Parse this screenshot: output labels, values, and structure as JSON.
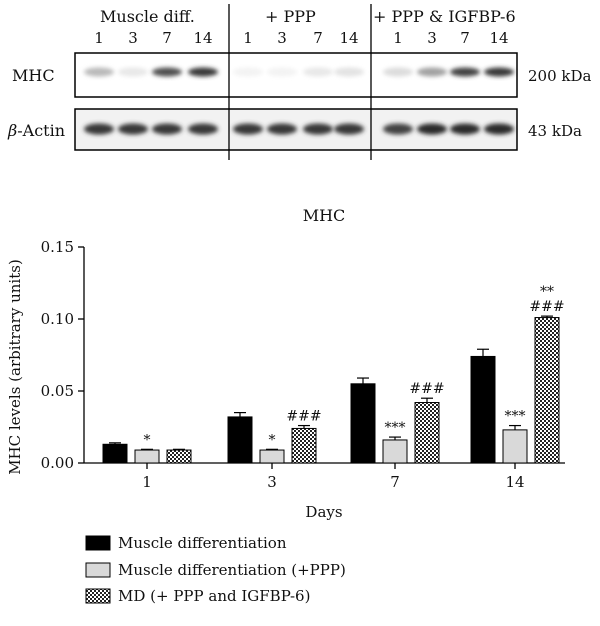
{
  "blot": {
    "group_labels": [
      "Muscle diff.",
      "+ PPP",
      "+ PPP & IGFBP-6"
    ],
    "lane_days": [
      "1",
      "3",
      "7",
      "14",
      "1",
      "3",
      "7",
      "14",
      "1",
      "3",
      "7",
      "14"
    ],
    "rows": [
      {
        "label": "MHC",
        "size": "200 kDa",
        "intensity": [
          0.3,
          0.1,
          0.75,
          0.85,
          0.05,
          0.05,
          0.1,
          0.12,
          0.15,
          0.4,
          0.8,
          0.85
        ]
      },
      {
        "label_prefix": "β",
        "label": "-Actin",
        "size": "43 kDa",
        "intensity": [
          0.85,
          0.85,
          0.85,
          0.85,
          0.85,
          0.85,
          0.85,
          0.85,
          0.8,
          0.9,
          0.9,
          0.9
        ]
      }
    ]
  },
  "chart_data": {
    "type": "bar",
    "title": "MHC",
    "xlabel": "Days",
    "ylabel": "MHC levels (arbitrary units)",
    "categories": [
      "1",
      "3",
      "7",
      "14"
    ],
    "ylim": [
      0,
      0.15
    ],
    "yticks": [
      "0.00",
      "0.05",
      "0.10",
      "0.15"
    ],
    "grid": false,
    "legend_position": "bottom-left",
    "series": [
      {
        "name": "Muscle differentiation",
        "values": [
          0.013,
          0.032,
          0.055,
          0.074
        ],
        "errors": [
          0.001,
          0.003,
          0.004,
          0.005
        ],
        "annotations": [
          "",
          "",
          "",
          ""
        ],
        "fill": "#000000",
        "pattern": "solid"
      },
      {
        "name": "Muscle differentiation (+PPP)",
        "values": [
          0.009,
          0.009,
          0.016,
          0.023
        ],
        "errors": [
          0.0005,
          0.0005,
          0.002,
          0.003
        ],
        "annotations": [
          "*",
          "*",
          "***",
          "***"
        ],
        "fill": "#d9d9d9",
        "pattern": "solid"
      },
      {
        "name": "MD (+ PPP and IGFBP-6)",
        "values": [
          0.009,
          0.024,
          0.042,
          0.101
        ],
        "errors": [
          0.0005,
          0.002,
          0.003,
          0.001
        ],
        "annotations": [
          "",
          "###",
          "###",
          "**\n###"
        ],
        "fill": "#ffffff",
        "pattern": "checker"
      }
    ]
  }
}
